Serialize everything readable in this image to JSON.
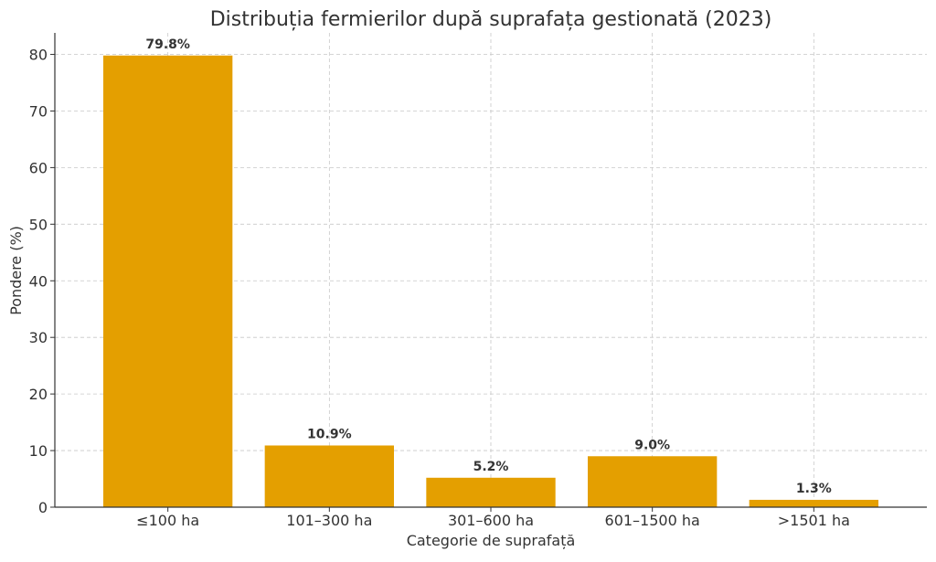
{
  "chart_data": {
    "type": "bar",
    "title": "Distribuția fermierilor după suprafața gestionată (2023)",
    "xlabel": "Categorie de suprafață",
    "ylabel": "Pondere (%)",
    "categories": [
      "≤100 ha",
      "101–300 ha",
      "301–600 ha",
      "601–1500 ha",
      ">1501 ha"
    ],
    "values": [
      79.8,
      10.9,
      5.2,
      9.0,
      1.3
    ],
    "data_labels": [
      "79.8%",
      "10.9%",
      "5.2%",
      "9.0%",
      "1.3%"
    ],
    "ylim": [
      0,
      83.8
    ],
    "yticks": [
      0,
      10,
      20,
      30,
      40,
      50,
      60,
      70,
      80
    ],
    "grid": true,
    "bar_color": "#E49F00"
  }
}
